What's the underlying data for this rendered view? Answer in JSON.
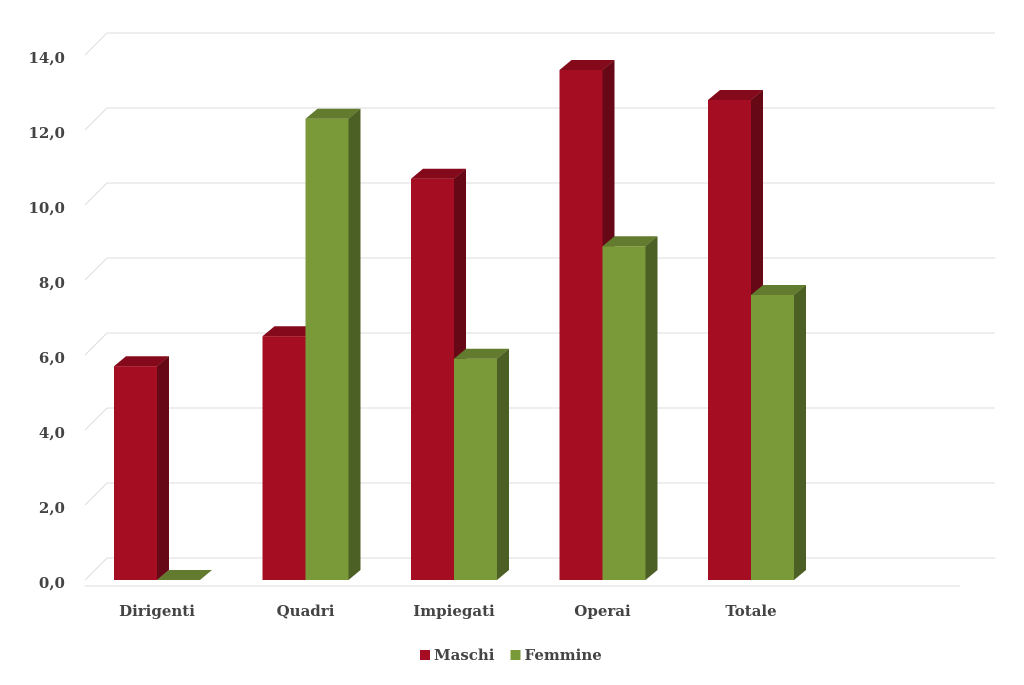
{
  "chart_data": {
    "type": "bar3d",
    "categories": [
      "Dirigenti",
      "Quadri",
      "Impiegati",
      "Operai",
      "Totale"
    ],
    "series": [
      {
        "name": "Maschi",
        "color": "#a50d22",
        "values": [
          5.7,
          6.5,
          10.7,
          13.6,
          12.8
        ]
      },
      {
        "name": "Femmine",
        "color": "#7a9a3a",
        "values": [
          0,
          12.3,
          5.9,
          8.9,
          7.6
        ]
      }
    ],
    "ylim": [
      0,
      14
    ],
    "yticks": [
      {
        "value": 0,
        "label": "0,0"
      },
      {
        "value": 2,
        "label": "2,0"
      },
      {
        "value": 4,
        "label": "4,0"
      },
      {
        "value": 6,
        "label": "6,0"
      },
      {
        "value": 8,
        "label": "8,0"
      },
      {
        "value": 10,
        "label": "10,0"
      },
      {
        "value": 12,
        "label": "12,0"
      },
      {
        "value": 14,
        "label": "14,0"
      }
    ],
    "grid": true,
    "legend": "bottom"
  }
}
